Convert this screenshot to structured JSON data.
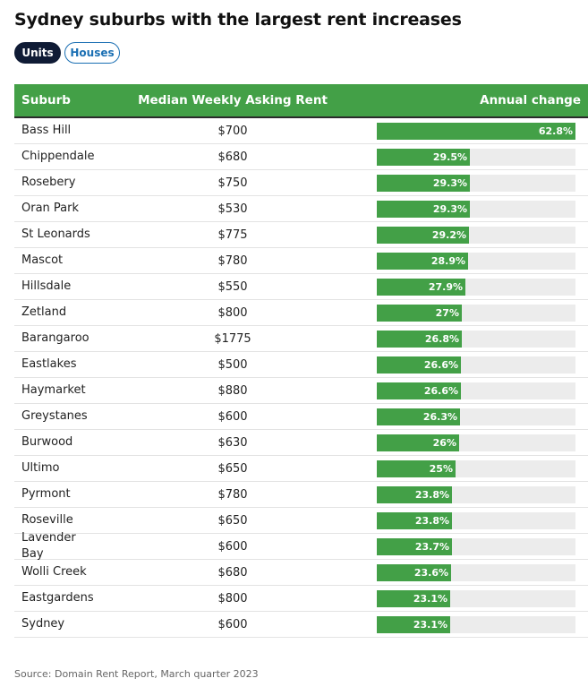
{
  "title": "Sydney suburbs with the largest rent increases",
  "toggles": [
    {
      "label": "Units",
      "active": true
    },
    {
      "label": "Houses",
      "active": false
    }
  ],
  "colors": {
    "header": "#43a047",
    "bar": "#43a047",
    "track": "#ececec",
    "active_toggle": "#0f1b35",
    "inactive_toggle_border": "#1a6fb3"
  },
  "source": "Source: Domain Rent Report, March quarter 2023",
  "chart_data": {
    "type": "table",
    "columns": [
      "Suburb",
      "Median Weekly Asking Rent",
      "Annual change"
    ],
    "max_value": 62.8,
    "rows": [
      {
        "suburb": "Bass Hill",
        "rent": "$700",
        "change": 62.8,
        "change_label": "62.8%"
      },
      {
        "suburb": "Chippendale",
        "rent": "$680",
        "change": 29.5,
        "change_label": "29.5%"
      },
      {
        "suburb": "Rosebery",
        "rent": "$750",
        "change": 29.3,
        "change_label": "29.3%"
      },
      {
        "suburb": "Oran Park",
        "rent": "$530",
        "change": 29.3,
        "change_label": "29.3%"
      },
      {
        "suburb": "St Leonards",
        "rent": "$775",
        "change": 29.2,
        "change_label": "29.2%"
      },
      {
        "suburb": "Mascot",
        "rent": "$780",
        "change": 28.9,
        "change_label": "28.9%"
      },
      {
        "suburb": "Hillsdale",
        "rent": "$550",
        "change": 27.9,
        "change_label": "27.9%"
      },
      {
        "suburb": "Zetland",
        "rent": "$800",
        "change": 27,
        "change_label": "27%"
      },
      {
        "suburb": "Barangaroo",
        "rent": "$1775",
        "change": 26.8,
        "change_label": "26.8%"
      },
      {
        "suburb": "Eastlakes",
        "rent": "$500",
        "change": 26.6,
        "change_label": "26.6%"
      },
      {
        "suburb": "Haymarket",
        "rent": "$880",
        "change": 26.6,
        "change_label": "26.6%"
      },
      {
        "suburb": "Greystanes",
        "rent": "$600",
        "change": 26.3,
        "change_label": "26.3%"
      },
      {
        "suburb": "Burwood",
        "rent": "$630",
        "change": 26,
        "change_label": "26%"
      },
      {
        "suburb": "Ultimo",
        "rent": "$650",
        "change": 25,
        "change_label": "25%"
      },
      {
        "suburb": "Pyrmont",
        "rent": "$780",
        "change": 23.8,
        "change_label": "23.8%"
      },
      {
        "suburb": "Roseville",
        "rent": "$650",
        "change": 23.8,
        "change_label": "23.8%"
      },
      {
        "suburb": "Lavender Bay",
        "rent": "$600",
        "change": 23.7,
        "change_label": "23.7%"
      },
      {
        "suburb": "Wolli Creek",
        "rent": "$680",
        "change": 23.6,
        "change_label": "23.6%"
      },
      {
        "suburb": "Eastgardens",
        "rent": "$800",
        "change": 23.1,
        "change_label": "23.1%"
      },
      {
        "suburb": "Sydney",
        "rent": "$600",
        "change": 23.1,
        "change_label": "23.1%"
      }
    ]
  }
}
